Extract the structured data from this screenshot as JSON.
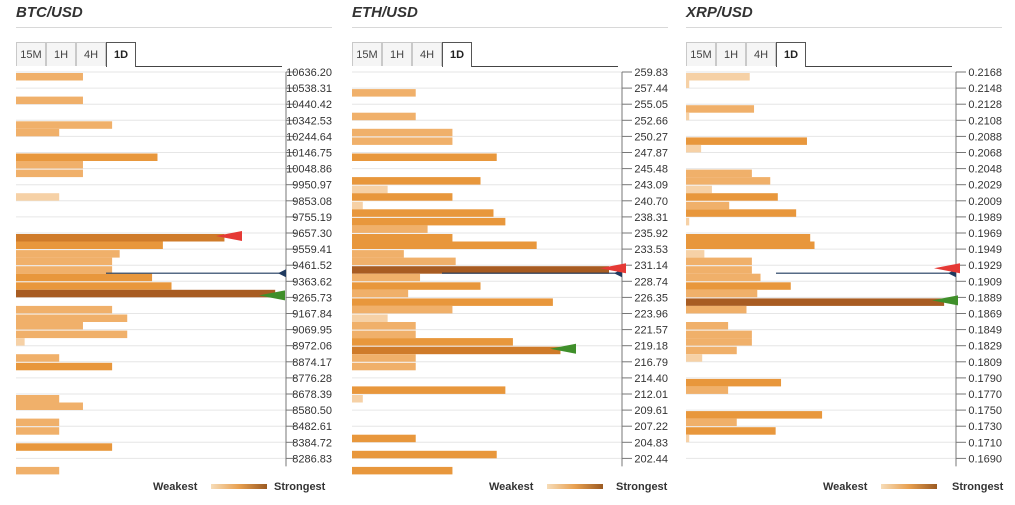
{
  "legend": {
    "weakest": "Weakest",
    "strongest": "Strongest"
  },
  "tabs": [
    "15M",
    "1H",
    "4H",
    "1D"
  ],
  "active_tab": "1D",
  "chart_data": [
    {
      "type": "bar",
      "title": "BTC/USD",
      "orientation": "horizontal",
      "price_levels": [
        "10636.20",
        "10538.31",
        "10440.42",
        "10342.53",
        "10244.64",
        "10146.75",
        "10048.86",
        "9950.97",
        "9853.08",
        "9755.19",
        "9657.30",
        "9559.41",
        "9461.52",
        "9363.62",
        "9265.73",
        "9167.84",
        "9069.95",
        "8972.06",
        "8874.17",
        "8776.28",
        "8678.39",
        "8580.50",
        "8482.61",
        "8384.72",
        "8286.83"
      ],
      "current_price_level": "9461.52",
      "resistance_marker_level": "9657.30",
      "support_marker_level": "9265.73",
      "bars": [
        {
          "level": 0,
          "sub": 0,
          "value": 62,
          "shade": "light"
        },
        {
          "level": 1,
          "sub": 1,
          "value": 62,
          "shade": "light"
        },
        {
          "level": 3,
          "sub": 0,
          "value": 89,
          "shade": "light"
        },
        {
          "level": 3,
          "sub": 1,
          "value": 40,
          "shade": "light"
        },
        {
          "level": 5,
          "sub": 0,
          "value": 131,
          "shade": "mid"
        },
        {
          "level": 5,
          "sub": 1,
          "value": 62,
          "shade": "light"
        },
        {
          "level": 6,
          "sub": 0,
          "value": 62,
          "shade": "light"
        },
        {
          "level": 7,
          "sub": 1,
          "value": 40,
          "shade": "pale"
        },
        {
          "level": 10,
          "sub": 0,
          "value": 193,
          "shade": "dark"
        },
        {
          "level": 10,
          "sub": 1,
          "value": 136,
          "shade": "mid"
        },
        {
          "level": 11,
          "sub": 0,
          "value": 96,
          "shade": "light"
        },
        {
          "level": 11,
          "sub": 1,
          "value": 89,
          "shade": "light"
        },
        {
          "level": 12,
          "sub": 0,
          "value": 89,
          "shade": "light"
        },
        {
          "level": 12,
          "sub": 1,
          "value": 126,
          "shade": "mid"
        },
        {
          "level": 13,
          "sub": 0,
          "value": 144,
          "shade": "mid"
        },
        {
          "level": 13,
          "sub": 1,
          "value": 240,
          "shade": "darkest"
        },
        {
          "level": 14,
          "sub": 1,
          "value": 89,
          "shade": "light"
        },
        {
          "level": 15,
          "sub": 0,
          "value": 103,
          "shade": "light"
        },
        {
          "level": 15,
          "sub": 1,
          "value": 62,
          "shade": "light"
        },
        {
          "level": 16,
          "sub": 0,
          "value": 103,
          "shade": "light"
        },
        {
          "level": 16,
          "sub": 1,
          "value": 8,
          "shade": "pale"
        },
        {
          "level": 17,
          "sub": 1,
          "value": 40,
          "shade": "light"
        },
        {
          "level": 18,
          "sub": 0,
          "value": 89,
          "shade": "mid"
        },
        {
          "level": 20,
          "sub": 0,
          "value": 40,
          "shade": "light"
        },
        {
          "level": 20,
          "sub": 1,
          "value": 62,
          "shade": "light"
        },
        {
          "level": 21,
          "sub": 1,
          "value": 40,
          "shade": "light"
        },
        {
          "level": 22,
          "sub": 0,
          "value": 40,
          "shade": "light"
        },
        {
          "level": 23,
          "sub": 0,
          "value": 89,
          "shade": "mid"
        },
        {
          "level": 24,
          "sub": 1,
          "value": 40,
          "shade": "light"
        }
      ]
    },
    {
      "type": "bar",
      "title": "ETH/USD",
      "orientation": "horizontal",
      "price_levels": [
        "259.83",
        "257.44",
        "255.05",
        "252.66",
        "250.27",
        "247.87",
        "245.48",
        "243.09",
        "240.70",
        "238.31",
        "235.92",
        "233.53",
        "231.14",
        "228.74",
        "226.35",
        "223.96",
        "221.57",
        "219.18",
        "216.79",
        "214.40",
        "212.01",
        "209.61",
        "207.22",
        "204.83",
        "202.44"
      ],
      "current_price_level": "231.14",
      "resistance_marker_level": "231.14",
      "support_marker_level": "219.18",
      "bars": [
        {
          "level": 1,
          "sub": 0,
          "value": 59,
          "shade": "light"
        },
        {
          "level": 2,
          "sub": 1,
          "value": 59,
          "shade": "light"
        },
        {
          "level": 3,
          "sub": 1,
          "value": 93,
          "shade": "light"
        },
        {
          "level": 4,
          "sub": 0,
          "value": 93,
          "shade": "light"
        },
        {
          "level": 5,
          "sub": 0,
          "value": 134,
          "shade": "mid"
        },
        {
          "level": 6,
          "sub": 1,
          "value": 119,
          "shade": "mid"
        },
        {
          "level": 7,
          "sub": 0,
          "value": 33,
          "shade": "pale"
        },
        {
          "level": 7,
          "sub": 1,
          "value": 93,
          "shade": "mid"
        },
        {
          "level": 8,
          "sub": 0,
          "value": 10,
          "shade": "pale"
        },
        {
          "level": 8,
          "sub": 1,
          "value": 131,
          "shade": "mid"
        },
        {
          "level": 9,
          "sub": 0,
          "value": 142,
          "shade": "mid"
        },
        {
          "level": 9,
          "sub": 1,
          "value": 70,
          "shade": "light"
        },
        {
          "level": 10,
          "sub": 0,
          "value": 93,
          "shade": "mid"
        },
        {
          "level": 10,
          "sub": 1,
          "value": 171,
          "shade": "mid"
        },
        {
          "level": 11,
          "sub": 0,
          "value": 48,
          "shade": "light"
        },
        {
          "level": 11,
          "sub": 1,
          "value": 96,
          "shade": "light"
        },
        {
          "level": 12,
          "sub": 0,
          "value": 238,
          "shade": "darkest"
        },
        {
          "level": 12,
          "sub": 1,
          "value": 63,
          "shade": "light"
        },
        {
          "level": 13,
          "sub": 0,
          "value": 119,
          "shade": "mid"
        },
        {
          "level": 13,
          "sub": 1,
          "value": 52,
          "shade": "light"
        },
        {
          "level": 14,
          "sub": 0,
          "value": 186,
          "shade": "mid"
        },
        {
          "level": 14,
          "sub": 1,
          "value": 93,
          "shade": "light"
        },
        {
          "level": 15,
          "sub": 0,
          "value": 33,
          "shade": "pale"
        },
        {
          "level": 15,
          "sub": 1,
          "value": 59,
          "shade": "light"
        },
        {
          "level": 16,
          "sub": 0,
          "value": 59,
          "shade": "light"
        },
        {
          "level": 16,
          "sub": 1,
          "value": 149,
          "shade": "mid"
        },
        {
          "level": 17,
          "sub": 0,
          "value": 193,
          "shade": "dark"
        },
        {
          "level": 17,
          "sub": 1,
          "value": 59,
          "shade": "light"
        },
        {
          "level": 18,
          "sub": 0,
          "value": 59,
          "shade": "light"
        },
        {
          "level": 19,
          "sub": 1,
          "value": 142,
          "shade": "mid"
        },
        {
          "level": 20,
          "sub": 0,
          "value": 10,
          "shade": "pale"
        },
        {
          "level": 22,
          "sub": 1,
          "value": 59,
          "shade": "mid"
        },
        {
          "level": 23,
          "sub": 1,
          "value": 134,
          "shade": "mid"
        },
        {
          "level": 24,
          "sub": 1,
          "value": 93,
          "shade": "mid"
        }
      ]
    },
    {
      "type": "bar",
      "title": "XRP/USD",
      "orientation": "horizontal",
      "price_levels": [
        "0.2168",
        "0.2148",
        "0.2128",
        "0.2108",
        "0.2088",
        "0.2068",
        "0.2048",
        "0.2029",
        "0.2009",
        "0.1989",
        "0.1969",
        "0.1949",
        "0.1929",
        "0.1909",
        "0.1889",
        "0.1869",
        "0.1849",
        "0.1829",
        "0.1809",
        "0.1790",
        "0.1770",
        "0.1750",
        "0.1730",
        "0.1710",
        "0.1690"
      ],
      "current_price_level": "0.1929",
      "resistance_marker_level": "0.1929",
      "support_marker_level": "0.1889",
      "bars": [
        {
          "level": 0,
          "sub": 0,
          "value": 59,
          "shade": "pale"
        },
        {
          "level": 0,
          "sub": 1,
          "value": 3,
          "shade": "pale"
        },
        {
          "level": 2,
          "sub": 0,
          "value": 63,
          "shade": "light"
        },
        {
          "level": 2,
          "sub": 1,
          "value": 3,
          "shade": "pale"
        },
        {
          "level": 4,
          "sub": 0,
          "value": 112,
          "shade": "mid"
        },
        {
          "level": 4,
          "sub": 1,
          "value": 14,
          "shade": "pale"
        },
        {
          "level": 6,
          "sub": 0,
          "value": 61,
          "shade": "light"
        },
        {
          "level": 6,
          "sub": 1,
          "value": 78,
          "shade": "light"
        },
        {
          "level": 7,
          "sub": 0,
          "value": 24,
          "shade": "pale"
        },
        {
          "level": 7,
          "sub": 1,
          "value": 85,
          "shade": "mid"
        },
        {
          "level": 8,
          "sub": 0,
          "value": 40,
          "shade": "light"
        },
        {
          "level": 8,
          "sub": 1,
          "value": 102,
          "shade": "mid"
        },
        {
          "level": 9,
          "sub": 0,
          "value": 3,
          "shade": "pale"
        },
        {
          "level": 10,
          "sub": 0,
          "value": 115,
          "shade": "mid"
        },
        {
          "level": 10,
          "sub": 1,
          "value": 119,
          "shade": "mid"
        },
        {
          "level": 11,
          "sub": 0,
          "value": 17,
          "shade": "pale"
        },
        {
          "level": 11,
          "sub": 1,
          "value": 61,
          "shade": "light"
        },
        {
          "level": 12,
          "sub": 0,
          "value": 61,
          "shade": "light"
        },
        {
          "level": 12,
          "sub": 1,
          "value": 69,
          "shade": "light"
        },
        {
          "level": 13,
          "sub": 0,
          "value": 97,
          "shade": "mid"
        },
        {
          "level": 13,
          "sub": 1,
          "value": 66,
          "shade": "light"
        },
        {
          "level": 14,
          "sub": 0,
          "value": 239,
          "shade": "darkest"
        },
        {
          "level": 14,
          "sub": 1,
          "value": 56,
          "shade": "light"
        },
        {
          "level": 15,
          "sub": 1,
          "value": 39,
          "shade": "light"
        },
        {
          "level": 16,
          "sub": 0,
          "value": 61,
          "shade": "light"
        },
        {
          "level": 16,
          "sub": 1,
          "value": 61,
          "shade": "light"
        },
        {
          "level": 17,
          "sub": 0,
          "value": 47,
          "shade": "light"
        },
        {
          "level": 17,
          "sub": 1,
          "value": 15,
          "shade": "pale"
        },
        {
          "level": 19,
          "sub": 0,
          "value": 88,
          "shade": "mid"
        },
        {
          "level": 19,
          "sub": 1,
          "value": 39,
          "shade": "light"
        },
        {
          "level": 21,
          "sub": 0,
          "value": 126,
          "shade": "mid"
        },
        {
          "level": 21,
          "sub": 1,
          "value": 47,
          "shade": "light"
        },
        {
          "level": 22,
          "sub": 0,
          "value": 83,
          "shade": "mid"
        },
        {
          "level": 22,
          "sub": 1,
          "value": 3,
          "shade": "pale"
        }
      ]
    }
  ],
  "colors": {
    "pale": "#f6d1a6",
    "light": "#f0b06a",
    "mid": "#e8973c",
    "dark": "#cf7b2a",
    "darkest": "#a85c22",
    "gridline": "#e6e6e6",
    "price_line": "#1f3a5f",
    "resistance_arrow": "#e53935",
    "support_arrow": "#3f8f2a"
  }
}
